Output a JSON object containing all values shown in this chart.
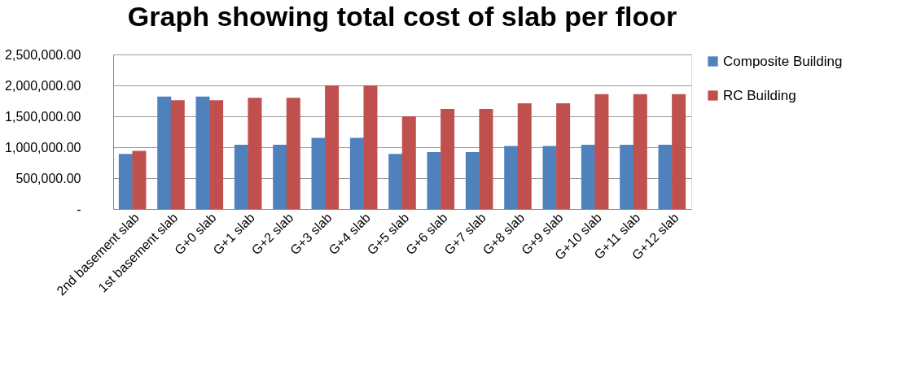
{
  "chart_data": {
    "type": "bar",
    "title": "Graph showing total cost of slab per floor",
    "categories": [
      "2nd basement slab",
      "1st basement slab",
      "G+0 slab",
      "G+1 slab",
      "G+2 slab",
      "G+3 slab",
      "G+4 slab",
      "G+5 slab",
      "G+6 slab",
      "G+7 slab",
      "G+8 slab",
      "G+9 slab",
      "G+10 slab",
      "G+11 slab",
      "G+12 slab"
    ],
    "series": [
      {
        "name": "Composite Building",
        "color": "#4f81bd",
        "values": [
          890000,
          1820000,
          1820000,
          1040000,
          1040000,
          1150000,
          1150000,
          890000,
          920000,
          920000,
          1020000,
          1020000,
          1040000,
          1040000,
          1040000
        ]
      },
      {
        "name": "RC Building",
        "color": "#c0504d",
        "values": [
          940000,
          1760000,
          1760000,
          1800000,
          1800000,
          2000000,
          2000000,
          1500000,
          1620000,
          1620000,
          1710000,
          1710000,
          1860000,
          1860000,
          1860000
        ]
      }
    ],
    "ylim": [
      0,
      2500000
    ],
    "yticks": [
      {
        "value": 0,
        "label": "-"
      },
      {
        "value": 500000,
        "label": "500,000.00"
      },
      {
        "value": 1000000,
        "label": "1,000,000.00"
      },
      {
        "value": 1500000,
        "label": "1,500,000.00"
      },
      {
        "value": 2000000,
        "label": "2,000,000.00"
      },
      {
        "value": 2500000,
        "label": "2,500,000.00"
      }
    ],
    "grid": "y",
    "legend": "right"
  }
}
